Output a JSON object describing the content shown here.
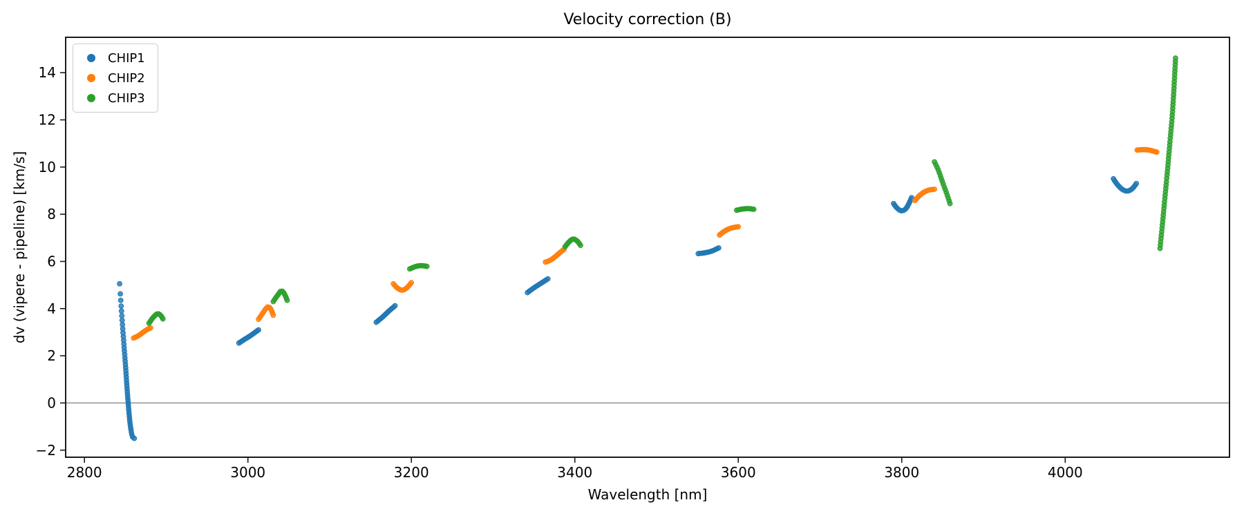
{
  "chart_data": {
    "type": "scatter",
    "title": "Velocity correction (B)",
    "xlabel": "Wavelength [nm]",
    "ylabel": "dv (vipere - pipeline) [km/s]",
    "xlim": [
      2777,
      4201
    ],
    "ylim": [
      -2.3,
      15.5
    ],
    "xticks": [
      2800,
      3000,
      3200,
      3400,
      3600,
      3800,
      4000
    ],
    "xtick_labels": [
      "2800",
      "3000",
      "3200",
      "3400",
      "3600",
      "3800",
      "4000"
    ],
    "yticks": [
      -2,
      0,
      2,
      4,
      6,
      8,
      10,
      12,
      14
    ],
    "ytick_labels": [
      "−2",
      "0",
      "2",
      "4",
      "6",
      "8",
      "10",
      "12",
      "14"
    ],
    "grid": false,
    "legend_position": "upper-left",
    "zero_line": {
      "y": 0,
      "color": "#8a8a8a"
    },
    "axis_color": "#1a1a1a",
    "series": [
      {
        "name": "CHIP1",
        "color": "#1f77b4",
        "marker": "circle",
        "segments": [
          {
            "points": [
              [
                2843,
                5.05
              ],
              [
                2844.5,
                4.3
              ],
              [
                2846,
                3.55
              ],
              [
                2847.5,
                2.85
              ],
              [
                2849,
                2.15
              ],
              [
                2850.5,
                1.45
              ],
              [
                2852,
                0.7
              ],
              [
                2853.5,
                0.0
              ],
              [
                2855,
                -0.6
              ],
              [
                2856.5,
                -1.05
              ],
              [
                2858,
                -1.35
              ],
              [
                2859.5,
                -1.48
              ],
              [
                2861,
                -1.5
              ]
            ],
            "n": 46,
            "t_pow": 0.72
          },
          {
            "points": [
              [
                2989,
                2.54
              ],
              [
                2996,
                2.7
              ],
              [
                3003,
                2.85
              ],
              [
                3013,
                3.1
              ]
            ],
            "n": 13,
            "t_pow": 1
          },
          {
            "points": [
              [
                3157,
                3.42
              ],
              [
                3165,
                3.65
              ],
              [
                3172,
                3.88
              ],
              [
                3180,
                4.12
              ]
            ],
            "n": 13,
            "t_pow": 1
          },
          {
            "points": [
              [
                3342,
                4.68
              ],
              [
                3350,
                4.88
              ],
              [
                3358,
                5.06
              ],
              [
                3367,
                5.26
              ]
            ],
            "n": 13,
            "t_pow": 1
          },
          {
            "points": [
              [
                3551,
                6.33
              ],
              [
                3558,
                6.36
              ],
              [
                3566,
                6.42
              ],
              [
                3571,
                6.49
              ],
              [
                3576,
                6.57
              ]
            ],
            "n": 12,
            "t_pow": 1
          },
          {
            "points": [
              [
                3790,
                8.45
              ],
              [
                3794,
                8.27
              ],
              [
                3799,
                8.15
              ],
              [
                3804,
                8.2
              ],
              [
                3808,
                8.4
              ],
              [
                3812,
                8.7
              ]
            ],
            "n": 14,
            "t_pow": 1
          },
          {
            "points": [
              [
                4059,
                9.5
              ],
              [
                4064,
                9.25
              ],
              [
                4070,
                9.05
              ],
              [
                4076,
                8.98
              ],
              [
                4082,
                9.08
              ],
              [
                4087,
                9.3
              ]
            ],
            "n": 15,
            "t_pow": 1
          }
        ]
      },
      {
        "name": "CHIP2",
        "color": "#ff7f0e",
        "marker": "circle",
        "segments": [
          {
            "points": [
              [
                2860,
                2.75
              ],
              [
                2866,
                2.85
              ],
              [
                2872,
                3.0
              ],
              [
                2877,
                3.12
              ],
              [
                2881,
                3.18
              ]
            ],
            "n": 13,
            "t_pow": 1
          },
          {
            "points": [
              [
                3013,
                3.55
              ],
              [
                3018,
                3.8
              ],
              [
                3022,
                4.0
              ],
              [
                3025,
                4.08
              ],
              [
                3028,
                3.98
              ],
              [
                3031,
                3.72
              ]
            ],
            "n": 13,
            "t_pow": 1
          },
          {
            "points": [
              [
                3178,
                5.05
              ],
              [
                3183,
                4.87
              ],
              [
                3189,
                4.78
              ],
              [
                3195,
                4.9
              ],
              [
                3200,
                5.1
              ]
            ],
            "n": 13,
            "t_pow": 1
          },
          {
            "points": [
              [
                3364,
                5.97
              ],
              [
                3370,
                6.05
              ],
              [
                3376,
                6.2
              ],
              [
                3382,
                6.38
              ],
              [
                3387,
                6.52
              ]
            ],
            "n": 13,
            "t_pow": 1
          },
          {
            "points": [
              [
                3577,
                7.12
              ],
              [
                3583,
                7.28
              ],
              [
                3590,
                7.4
              ],
              [
                3596,
                7.45
              ],
              [
                3600,
                7.47
              ]
            ],
            "n": 13,
            "t_pow": 1
          },
          {
            "points": [
              [
                3816,
                8.58
              ],
              [
                3822,
                8.8
              ],
              [
                3828,
                8.95
              ],
              [
                3834,
                9.03
              ],
              [
                3840,
                9.06
              ]
            ],
            "n": 13,
            "t_pow": 1
          },
          {
            "points": [
              [
                4088,
                10.72
              ],
              [
                4096,
                10.74
              ],
              [
                4104,
                10.71
              ],
              [
                4112,
                10.63
              ]
            ],
            "n": 15,
            "t_pow": 1
          }
        ]
      },
      {
        "name": "CHIP3",
        "color": "#2ca02c",
        "marker": "circle",
        "segments": [
          {
            "points": [
              [
                2879,
                3.38
              ],
              [
                2884,
                3.62
              ],
              [
                2889,
                3.78
              ],
              [
                2893,
                3.72
              ],
              [
                2896,
                3.56
              ]
            ],
            "n": 13,
            "t_pow": 1
          },
          {
            "points": [
              [
                3031,
                4.3
              ],
              [
                3036,
                4.55
              ],
              [
                3041,
                4.75
              ],
              [
                3045,
                4.6
              ],
              [
                3048,
                4.35
              ]
            ],
            "n": 13,
            "t_pow": 1
          },
          {
            "points": [
              [
                3198,
                5.68
              ],
              [
                3205,
                5.78
              ],
              [
                3212,
                5.82
              ],
              [
                3219,
                5.79
              ]
            ],
            "n": 12,
            "t_pow": 1
          },
          {
            "points": [
              [
                3388,
                6.62
              ],
              [
                3393,
                6.83
              ],
              [
                3398,
                6.95
              ],
              [
                3403,
                6.86
              ],
              [
                3407,
                6.68
              ]
            ],
            "n": 13,
            "t_pow": 1
          },
          {
            "points": [
              [
                3598,
                8.17
              ],
              [
                3605,
                8.22
              ],
              [
                3612,
                8.24
              ],
              [
                3619,
                8.21
              ]
            ],
            "n": 12,
            "t_pow": 1
          },
          {
            "points": [
              [
                3840,
                10.22
              ],
              [
                3845,
                9.85
              ],
              [
                3850,
                9.35
              ],
              [
                3855,
                8.88
              ],
              [
                3859,
                8.45
              ]
            ],
            "n": 16,
            "t_pow": 1
          },
          {
            "points": [
              [
                4116,
                6.55
              ],
              [
                4119,
                7.6
              ],
              [
                4122,
                8.7
              ],
              [
                4125,
                9.8
              ],
              [
                4128,
                11.0
              ],
              [
                4131,
                12.2
              ],
              [
                4133,
                13.3
              ],
              [
                4135,
                14.62
              ]
            ],
            "n": 58,
            "t_pow": 1
          }
        ]
      }
    ]
  }
}
